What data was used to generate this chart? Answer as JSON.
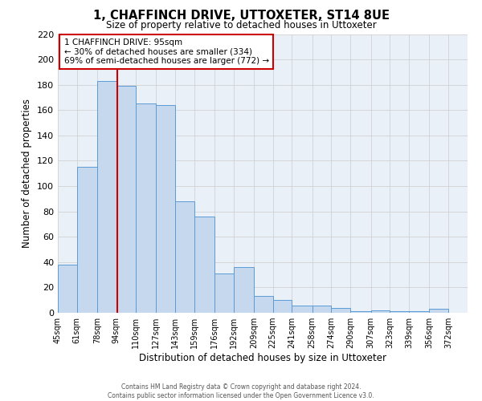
{
  "title": "1, CHAFFINCH DRIVE, UTTOXETER, ST14 8UE",
  "subtitle": "Size of property relative to detached houses in Uttoxeter",
  "xlabel": "Distribution of detached houses by size in Uttoxeter",
  "ylabel": "Number of detached properties",
  "bins": [
    45,
    61,
    78,
    94,
    110,
    127,
    143,
    159,
    176,
    192,
    209,
    225,
    241,
    258,
    274,
    290,
    307,
    323,
    339,
    356,
    372
  ],
  "counts": [
    38,
    115,
    183,
    179,
    165,
    164,
    88,
    76,
    31,
    36,
    13,
    10,
    6,
    6,
    4,
    1,
    2,
    1,
    1,
    3
  ],
  "bar_color": "#c5d8ed",
  "bar_edge_color": "#5b9bd5",
  "property_line_x": 95,
  "annotation_title": "1 CHAFFINCH DRIVE: 95sqm",
  "annotation_line1": "← 30% of detached houses are smaller (334)",
  "annotation_line2": "69% of semi-detached houses are larger (772) →",
  "annotation_box_color": "#cc0000",
  "grid_color": "#cccccc",
  "background_color": "#eaf0f8",
  "ylim": [
    0,
    220
  ],
  "yticks": [
    0,
    20,
    40,
    60,
    80,
    100,
    120,
    140,
    160,
    180,
    200,
    220
  ],
  "tick_labels": [
    "45sqm",
    "61sqm",
    "78sqm",
    "94sqm",
    "110sqm",
    "127sqm",
    "143sqm",
    "159sqm",
    "176sqm",
    "192sqm",
    "209sqm",
    "225sqm",
    "241sqm",
    "258sqm",
    "274sqm",
    "290sqm",
    "307sqm",
    "323sqm",
    "339sqm",
    "356sqm",
    "372sqm"
  ],
  "footer1": "Contains HM Land Registry data © Crown copyright and database right 2024.",
  "footer2": "Contains public sector information licensed under the Open Government Licence v3.0."
}
